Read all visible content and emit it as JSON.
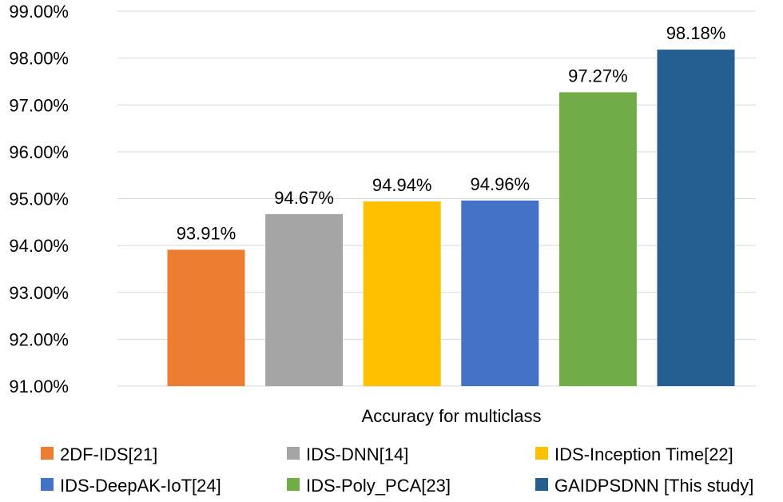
{
  "chart_data": {
    "type": "bar",
    "title": "",
    "xlabel": "Accuracy for multiclass",
    "ylabel": "",
    "ylim": [
      91,
      99
    ],
    "y_ticks": [
      "91.00%",
      "92.00%",
      "93.00%",
      "94.00%",
      "95.00%",
      "96.00%",
      "97.00%",
      "98.00%",
      "99.00%"
    ],
    "grid": true,
    "legend_position": "bottom",
    "series": [
      {
        "name": "2DF-IDS[21]",
        "value": 93.91,
        "label": "93.91%",
        "color": "#ED7D31"
      },
      {
        "name": "IDS-DNN[14]",
        "value": 94.67,
        "label": "94.67%",
        "color": "#A5A5A5"
      },
      {
        "name": "IDS-Inception Time[22]",
        "value": 94.94,
        "label": "94.94%",
        "color": "#FFC000"
      },
      {
        "name": "IDS-DeepAK-IoT[24]",
        "value": 94.96,
        "label": "94.96%",
        "color": "#4472C4"
      },
      {
        "name": "IDS-Poly_PCA[23]",
        "value": 97.27,
        "label": "97.27%",
        "color": "#70AD47"
      },
      {
        "name": "GAIDPSDNN [This study]",
        "value": 98.18,
        "label": "98.18%",
        "color": "#255E91"
      }
    ]
  }
}
